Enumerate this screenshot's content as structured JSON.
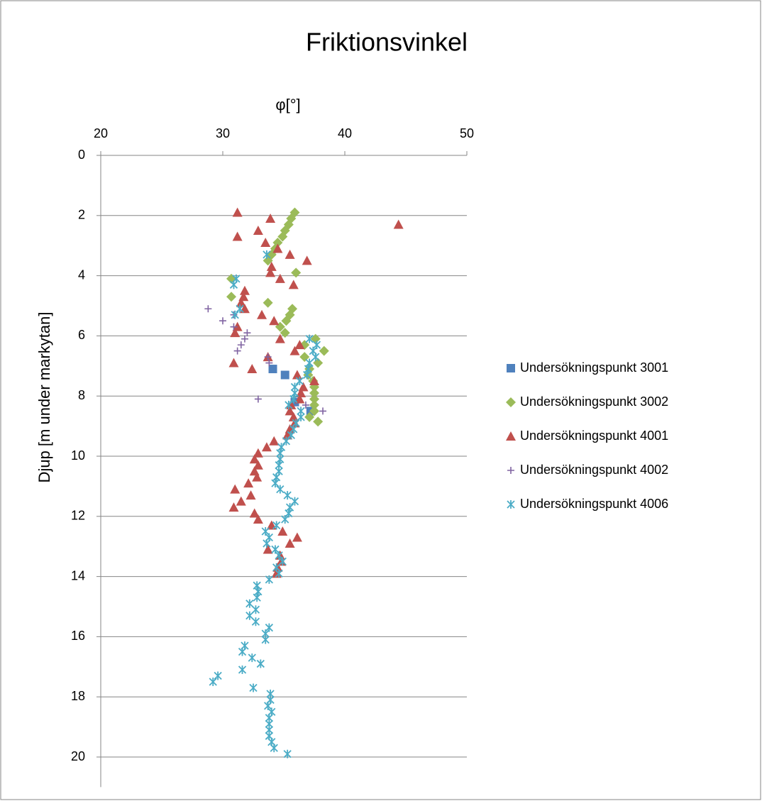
{
  "chart_data": {
    "type": "scatter",
    "title": "Friktionsvinkel",
    "x_label": "φ[°]",
    "y_label": "Djup [m under markytan]",
    "xlim": [
      20,
      50
    ],
    "xticks": [
      20,
      30,
      40,
      50
    ],
    "ylim": [
      0,
      21
    ],
    "yticks": [
      0,
      2,
      4,
      6,
      8,
      10,
      12,
      14,
      16,
      18,
      20
    ],
    "y_inverted": true,
    "x_axis_position": "top",
    "grid": true,
    "legend": "right",
    "series": [
      {
        "name": "Undersökningspunkt 3001",
        "color": "#4f81bd",
        "marker": "square",
        "x": [
          34.1,
          35.1,
          35.9,
          37.2
        ],
        "y": [
          7.1,
          7.3,
          8.2,
          8.5
        ]
      },
      {
        "name": "Undersökningspunkt 3002",
        "color": "#9bbb59",
        "marker": "diamond",
        "x": [
          35.9,
          35.6,
          35.4,
          35.1,
          34.9,
          34.5,
          34.3,
          34.0,
          33.7,
          36.0,
          30.7,
          30.7,
          33.7,
          35.7,
          35.5,
          35.2,
          34.7,
          35.1,
          37.6,
          36.7,
          38.3,
          36.7,
          37.8,
          37.1,
          37.0,
          37.4,
          37.5,
          37.5,
          37.5,
          37.5,
          37.5,
          37.1,
          37.8
        ],
        "y": [
          1.9,
          2.1,
          2.3,
          2.5,
          2.7,
          2.9,
          3.1,
          3.3,
          3.5,
          3.9,
          4.1,
          4.7,
          4.9,
          5.1,
          5.3,
          5.5,
          5.7,
          5.9,
          6.1,
          6.3,
          6.5,
          6.7,
          6.9,
          7.1,
          7.3,
          7.5,
          7.7,
          7.9,
          8.1,
          8.3,
          8.5,
          8.7,
          8.85
        ]
      },
      {
        "name": "Undersökningspunkt 4001",
        "color": "#c0504d",
        "marker": "triangle",
        "x": [
          31.2,
          33.9,
          44.4,
          32.9,
          31.2,
          33.5,
          34.5,
          35.5,
          36.9,
          34.0,
          33.9,
          34.7,
          35.8,
          31.8,
          31.7,
          31.5,
          31.8,
          33.2,
          34.2,
          31.2,
          31.0,
          34.7,
          36.3,
          35.9,
          33.7,
          30.9,
          32.4,
          36.1,
          37.5,
          36.6,
          36.4,
          36.3,
          35.6,
          35.5,
          35.8,
          35.9,
          35.5,
          35.3,
          34.2,
          33.6,
          32.9,
          32.6,
          32.9,
          32.6,
          32.8,
          32.1,
          31.0,
          32.3,
          31.5,
          30.9,
          32.6,
          32.9,
          34.0,
          34.9,
          36.1,
          35.5,
          33.7,
          34.7,
          34.8,
          34.5,
          34.4
        ],
        "y": [
          1.9,
          2.1,
          2.3,
          2.5,
          2.7,
          2.9,
          3.1,
          3.3,
          3.5,
          3.7,
          3.9,
          4.1,
          4.3,
          4.5,
          4.7,
          4.9,
          5.1,
          5.3,
          5.5,
          5.7,
          5.9,
          6.1,
          6.3,
          6.5,
          6.7,
          6.9,
          7.1,
          7.3,
          7.5,
          7.7,
          7.9,
          8.1,
          8.3,
          8.5,
          8.7,
          8.9,
          9.1,
          9.3,
          9.5,
          9.7,
          9.9,
          10.1,
          10.3,
          10.5,
          10.7,
          10.9,
          11.1,
          11.3,
          11.5,
          11.7,
          11.9,
          12.1,
          12.3,
          12.5,
          12.7,
          12.9,
          13.1,
          13.3,
          13.5,
          13.7,
          13.9
        ]
      },
      {
        "name": "Undersökningspunkt 4002",
        "color": "#8064a2",
        "marker": "plus",
        "x": [
          28.8,
          30.9,
          30.0,
          30.9,
          32.0,
          31.8,
          31.5,
          31.2,
          33.7,
          33.8,
          32.9,
          36.8,
          38.2
        ],
        "y": [
          5.1,
          5.3,
          5.5,
          5.7,
          5.9,
          6.1,
          6.3,
          6.5,
          6.7,
          6.9,
          8.1,
          8.3,
          8.5
        ]
      },
      {
        "name": "Undersökningspunkt 4006",
        "color": "#4bacc6",
        "marker": "star",
        "x": [
          33.6,
          31.1,
          30.9,
          31.4,
          31.0,
          37.1,
          37.7,
          37.4,
          37.6,
          37.1,
          37.0,
          36.9,
          36.3,
          35.9,
          35.9,
          35.8,
          35.4,
          36.4,
          36.4,
          36.0,
          35.8,
          35.6,
          35.2,
          34.8,
          34.7,
          34.7,
          34.6,
          34.6,
          34.4,
          34.3,
          34.7,
          35.3,
          35.9,
          35.5,
          35.4,
          35.1,
          34.4,
          33.5,
          33.8,
          33.6,
          34.3,
          34.6,
          34.9,
          34.4,
          34.6,
          33.8,
          32.8,
          32.9,
          32.8,
          32.2,
          32.7,
          32.2,
          32.7,
          33.8,
          33.5,
          33.5,
          31.8,
          31.6,
          32.4,
          33.1,
          31.6,
          29.6,
          29.2,
          32.5,
          33.9,
          33.9,
          33.7,
          34.0,
          33.8,
          33.8,
          33.8,
          33.8,
          34.0,
          34.2,
          35.3
        ],
        "y": [
          3.3,
          4.1,
          4.3,
          5.1,
          5.3,
          6.1,
          6.3,
          6.5,
          6.7,
          6.9,
          7.1,
          7.3,
          7.5,
          7.7,
          7.9,
          8.1,
          8.3,
          8.5,
          8.7,
          8.9,
          9.1,
          9.3,
          9.5,
          9.7,
          9.9,
          10.1,
          10.3,
          10.5,
          10.7,
          10.9,
          11.1,
          11.3,
          11.5,
          11.7,
          11.9,
          12.1,
          12.3,
          12.5,
          12.7,
          12.9,
          13.1,
          13.3,
          13.5,
          13.7,
          13.9,
          14.1,
          14.3,
          14.5,
          14.7,
          14.9,
          15.1,
          15.3,
          15.5,
          15.7,
          15.9,
          16.1,
          16.3,
          16.5,
          16.7,
          16.9,
          17.1,
          17.3,
          17.5,
          17.7,
          17.9,
          18.1,
          18.3,
          18.5,
          18.7,
          18.9,
          19.1,
          19.3,
          19.5,
          19.7,
          19.9
        ]
      }
    ]
  }
}
